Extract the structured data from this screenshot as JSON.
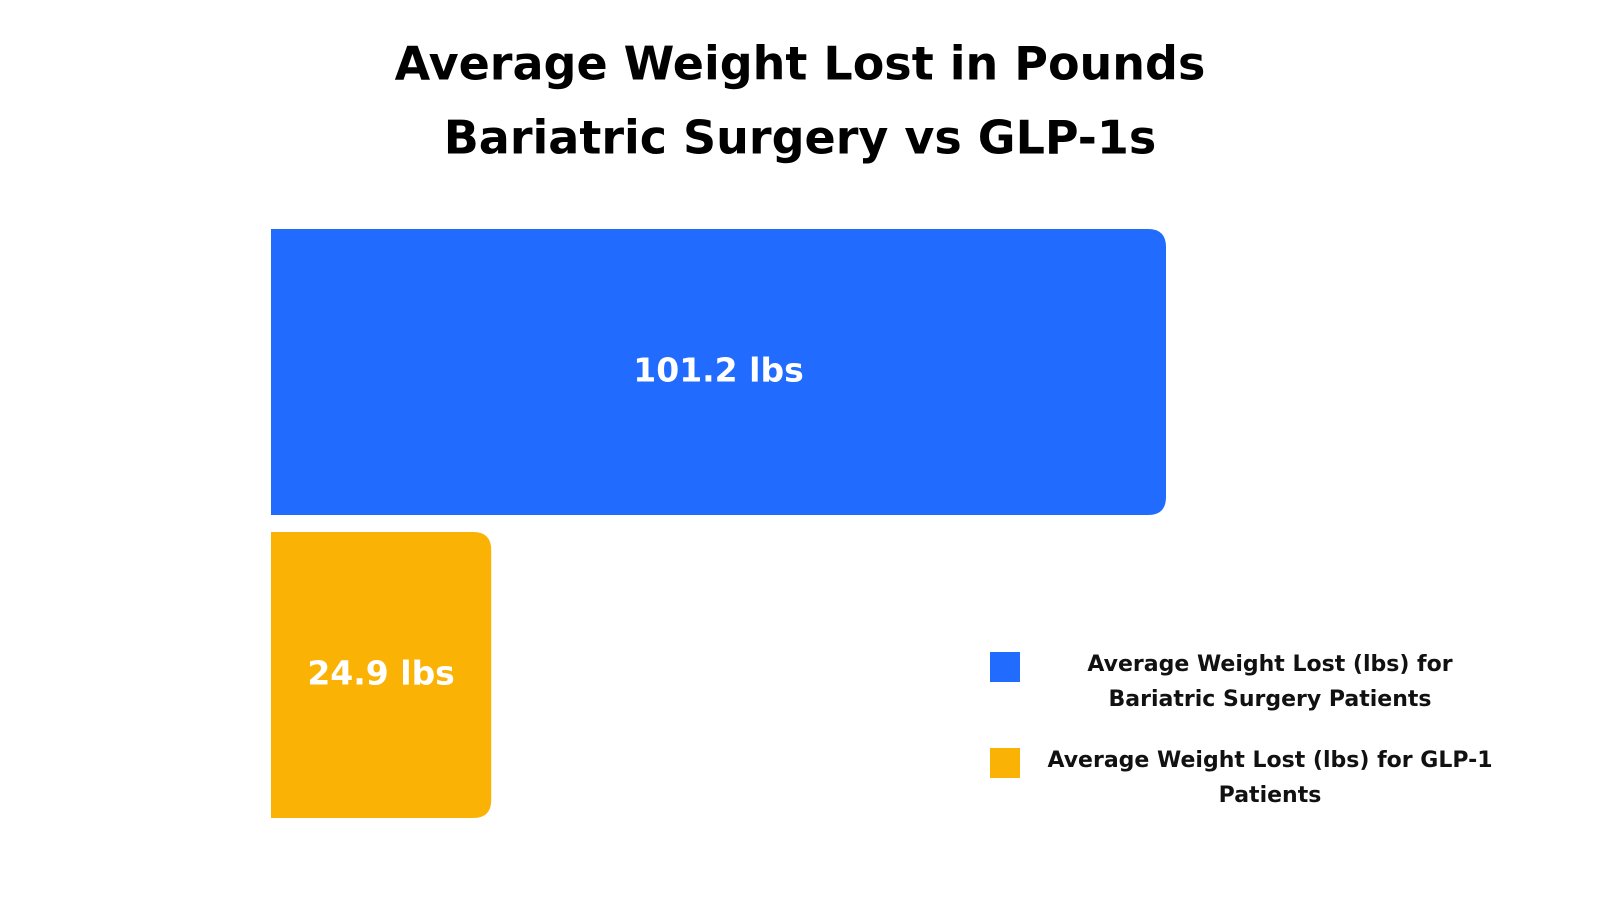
{
  "chart_data": {
    "type": "bar",
    "orientation": "horizontal",
    "title": "Average Weight Lost in Pounds",
    "subtitle": "Bariatric Surgery vs GLP-1s",
    "series": [
      {
        "name": "Average Weight Lost (lbs) for Bariatric Surgery Patients",
        "color": "#216cff",
        "values": [
          101.2
        ],
        "value_labels": [
          "101.2 lbs"
        ]
      },
      {
        "name": "Average Weight Lost (lbs) for GLP-1 Patients",
        "color": "#fab205",
        "values": [
          24.9
        ],
        "value_labels": [
          "24.9 lbs"
        ]
      }
    ]
  }
}
